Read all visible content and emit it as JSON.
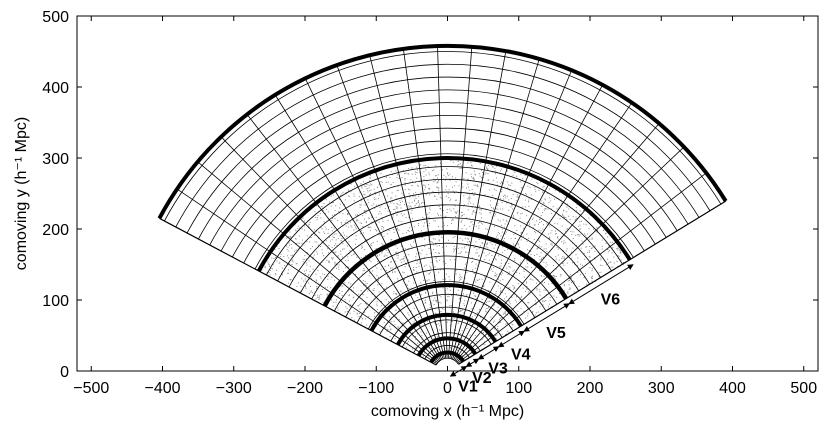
{
  "chart_data": {
    "type": "scatter",
    "title": "",
    "xlabel": "comoving x (h⁻¹ Mpc)",
    "ylabel": "comoving y (h⁻¹ Mpc)",
    "xlim": [
      -520,
      520
    ],
    "ylim": [
      0,
      500
    ],
    "x_ticks": [
      -500,
      -400,
      -300,
      -200,
      -100,
      0,
      100,
      200,
      300,
      400,
      500
    ],
    "y_ticks": [
      0,
      100,
      200,
      300,
      400,
      500
    ],
    "grid": false,
    "wedge": {
      "opening_angle_left_deg": 28,
      "opening_angle_right_deg": 31.5,
      "grid_radii_step": 18,
      "grid_angles": 20
    },
    "volumes": [
      {
        "name": "V1",
        "r_inner": 0,
        "r_outer": 26
      },
      {
        "name": "V2",
        "r_inner": 26,
        "r_outer": 46
      },
      {
        "name": "V3",
        "r_inner": 46,
        "r_outer": 79
      },
      {
        "name": "V4",
        "r_inner": 79,
        "r_outer": 121
      },
      {
        "name": "V5",
        "r_inner": 121,
        "r_outer": 195
      },
      {
        "name": "V6",
        "r_inner": 195,
        "r_outer": 300
      },
      {
        "name": "",
        "r_inner": 300,
        "r_outer": 458
      }
    ],
    "points_region": {
      "r_min": 20,
      "r_max": 300
    },
    "series": [
      {
        "values_description": "galaxy points",
        "count": 2600
      }
    ]
  }
}
